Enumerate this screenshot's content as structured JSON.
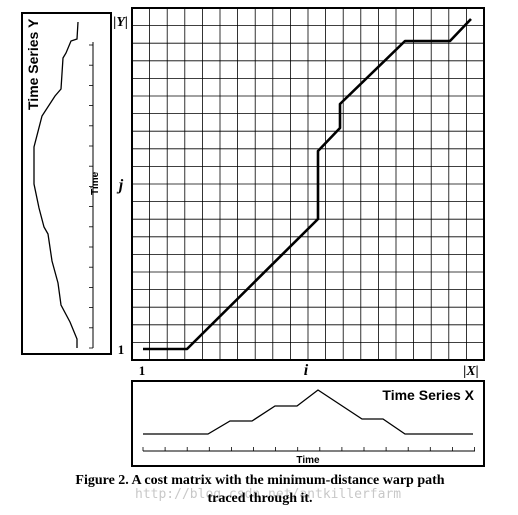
{
  "matrix": {
    "columns": 20,
    "rows": 20,
    "y_top_label": "|Y|",
    "x_right_label": "|X|",
    "y_mid_label": "j",
    "x_mid_label": "i",
    "origin_y_label": "1",
    "origin_x_label": "1"
  },
  "series_y": {
    "title": "Time Series Y",
    "axis_label": "Time"
  },
  "series_x": {
    "title": "Time Series X",
    "axis_label": "Time"
  },
  "caption": {
    "line1": "Figure 2. A cost matrix with the minimum-distance warp path",
    "line2": "traced through it."
  },
  "watermark": "http://blog.csdn.net/antkillerfarm",
  "colors": {
    "ink": "#000000",
    "watermark": "#c8c8c8"
  }
}
